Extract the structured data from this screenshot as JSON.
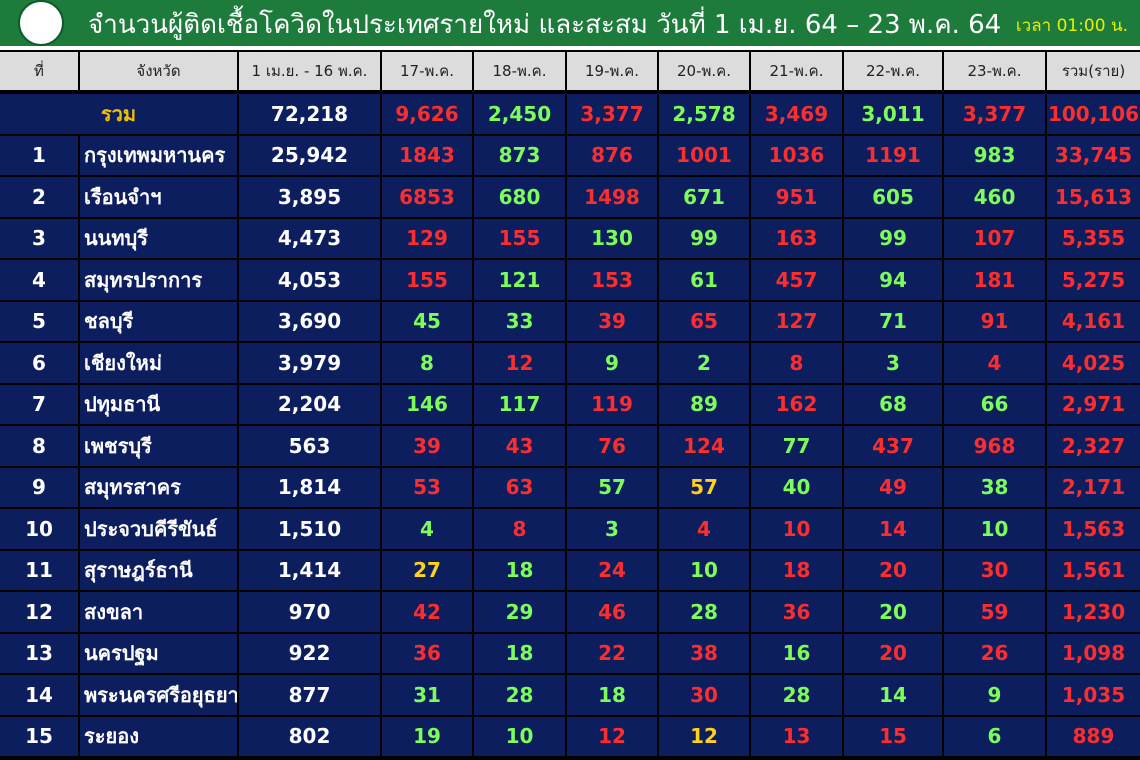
{
  "header": {
    "title": "จำนวนผู้ติดเชื้อโควิดในประเทศรายใหม่ และสะสม วันที่ 1 เม.ย. 64 – 23 พ.ค. 64",
    "time": "เวลา 01:00 น."
  },
  "table": {
    "columns": [
      "ที่",
      "จังหวัด",
      "1 เม.ย. - 16 พ.ค.",
      "17-พ.ค.",
      "18-พ.ค.",
      "19-พ.ค.",
      "20-พ.ค.",
      "21-พ.ค.",
      "22-พ.ค.",
      "23-พ.ค.",
      "รวม(ราย)"
    ],
    "total": {
      "label": "รวม",
      "cells": [
        "72,218",
        "9,626",
        "2,450",
        "3,377",
        "2,578",
        "3,469",
        "3,011",
        "3,377",
        "100,106"
      ],
      "colors": [
        "#ff2e2e",
        "#7dff5a",
        "#ff2e2e",
        "#7dff5a",
        "#ff2e2e",
        "#7dff5a",
        "#ff2e2e",
        "#ff2e2e"
      ]
    },
    "rows": [
      {
        "cells": [
          "1",
          "กรุงเทพมหานคร",
          "25,942",
          "1843",
          "873",
          "876",
          "1001",
          "1036",
          "1191",
          "983",
          "33,745"
        ],
        "colors": [
          "#ff2e2e",
          "#7dff5a",
          "#ff2e2e",
          "#ff2e2e",
          "#ff2e2e",
          "#ff2e2e",
          "#7dff5a",
          "#ff2e2e"
        ]
      },
      {
        "cells": [
          "2",
          "เรือนจำฯ",
          "3,895",
          "6853",
          "680",
          "1498",
          "671",
          "951",
          "605",
          "460",
          "15,613"
        ],
        "colors": [
          "#ff2e2e",
          "#7dff5a",
          "#ff2e2e",
          "#7dff5a",
          "#ff2e2e",
          "#7dff5a",
          "#7dff5a",
          "#ff2e2e"
        ]
      },
      {
        "cells": [
          "3",
          "นนทบุรี",
          "4,473",
          "129",
          "155",
          "130",
          "99",
          "163",
          "99",
          "107",
          "5,355"
        ],
        "colors": [
          "#ff2e2e",
          "#ff2e2e",
          "#7dff5a",
          "#7dff5a",
          "#ff2e2e",
          "#7dff5a",
          "#ff2e2e",
          "#ff2e2e"
        ]
      },
      {
        "cells": [
          "4",
          "สมุทรปราการ",
          "4,053",
          "155",
          "121",
          "153",
          "61",
          "457",
          "94",
          "181",
          "5,275"
        ],
        "colors": [
          "#ff2e2e",
          "#7dff5a",
          "#ff2e2e",
          "#7dff5a",
          "#ff2e2e",
          "#7dff5a",
          "#ff2e2e",
          "#ff2e2e"
        ]
      },
      {
        "cells": [
          "5",
          "ชลบุรี",
          "3,690",
          "45",
          "33",
          "39",
          "65",
          "127",
          "71",
          "91",
          "4,161"
        ],
        "colors": [
          "#7dff5a",
          "#7dff5a",
          "#ff2e2e",
          "#ff2e2e",
          "#ff2e2e",
          "#7dff5a",
          "#ff2e2e",
          "#ff2e2e"
        ]
      },
      {
        "cells": [
          "6",
          "เชียงใหม่",
          "3,979",
          "8",
          "12",
          "9",
          "2",
          "8",
          "3",
          "4",
          "4,025"
        ],
        "colors": [
          "#7dff5a",
          "#ff2e2e",
          "#7dff5a",
          "#7dff5a",
          "#ff2e2e",
          "#7dff5a",
          "#ff2e2e",
          "#ff2e2e"
        ]
      },
      {
        "cells": [
          "7",
          "ปทุมธานี",
          "2,204",
          "146",
          "117",
          "119",
          "89",
          "162",
          "68",
          "66",
          "2,971"
        ],
        "colors": [
          "#7dff5a",
          "#7dff5a",
          "#ff2e2e",
          "#7dff5a",
          "#ff2e2e",
          "#7dff5a",
          "#7dff5a",
          "#ff2e2e"
        ]
      },
      {
        "cells": [
          "8",
          "เพชรบุรี",
          "563",
          "39",
          "43",
          "76",
          "124",
          "77",
          "437",
          "968",
          "2,327"
        ],
        "colors": [
          "#ff2e2e",
          "#ff2e2e",
          "#ff2e2e",
          "#ff2e2e",
          "#7dff5a",
          "#ff2e2e",
          "#ff2e2e",
          "#ff2e2e"
        ]
      },
      {
        "cells": [
          "9",
          "สมุทรสาคร",
          "1,814",
          "53",
          "63",
          "57",
          "57",
          "40",
          "49",
          "38",
          "2,171"
        ],
        "colors": [
          "#ff2e2e",
          "#ff2e2e",
          "#7dff5a",
          "#ffd21f",
          "#7dff5a",
          "#ff2e2e",
          "#7dff5a",
          "#ff2e2e"
        ]
      },
      {
        "cells": [
          "10",
          "ประจวบคีรีขันธ์",
          "1,510",
          "4",
          "8",
          "3",
          "4",
          "10",
          "14",
          "10",
          "1,563"
        ],
        "colors": [
          "#7dff5a",
          "#ff2e2e",
          "#7dff5a",
          "#ff2e2e",
          "#ff2e2e",
          "#ff2e2e",
          "#7dff5a",
          "#ff2e2e"
        ]
      },
      {
        "cells": [
          "11",
          "สุราษฎร์ธานี",
          "1,414",
          "27",
          "18",
          "24",
          "10",
          "18",
          "20",
          "30",
          "1,561"
        ],
        "colors": [
          "#ffd21f",
          "#7dff5a",
          "#ff2e2e",
          "#7dff5a",
          "#ff2e2e",
          "#ff2e2e",
          "#ff2e2e",
          "#ff2e2e"
        ]
      },
      {
        "cells": [
          "12",
          "สงขลา",
          "970",
          "42",
          "29",
          "46",
          "28",
          "36",
          "20",
          "59",
          "1,230"
        ],
        "colors": [
          "#ff2e2e",
          "#7dff5a",
          "#ff2e2e",
          "#7dff5a",
          "#ff2e2e",
          "#7dff5a",
          "#ff2e2e",
          "#ff2e2e"
        ]
      },
      {
        "cells": [
          "13",
          "นครปฐม",
          "922",
          "36",
          "18",
          "22",
          "38",
          "16",
          "20",
          "26",
          "1,098"
        ],
        "colors": [
          "#ff2e2e",
          "#7dff5a",
          "#ff2e2e",
          "#ff2e2e",
          "#7dff5a",
          "#ff2e2e",
          "#ff2e2e",
          "#ff2e2e"
        ]
      },
      {
        "cells": [
          "14",
          "พระนครศรีอยุธยา",
          "877",
          "31",
          "28",
          "18",
          "30",
          "28",
          "14",
          "9",
          "1,035"
        ],
        "colors": [
          "#7dff5a",
          "#7dff5a",
          "#7dff5a",
          "#ff2e2e",
          "#7dff5a",
          "#7dff5a",
          "#7dff5a",
          "#ff2e2e"
        ]
      },
      {
        "cells": [
          "15",
          "ระยอง",
          "802",
          "19",
          "10",
          "12",
          "12",
          "13",
          "15",
          "6",
          "889"
        ],
        "colors": [
          "#7dff5a",
          "#7dff5a",
          "#ff2e2e",
          "#ffd21f",
          "#ff2e2e",
          "#ff2e2e",
          "#7dff5a",
          "#ff2e2e"
        ]
      }
    ]
  }
}
